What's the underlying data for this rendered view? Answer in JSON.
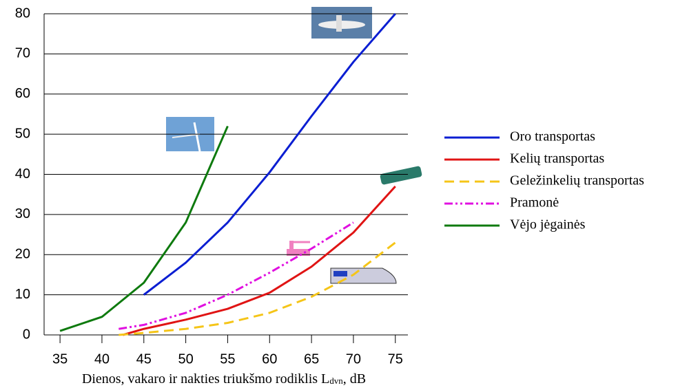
{
  "chart_data": {
    "type": "line",
    "xlabel": "Dienos, vakaro ir nakties triukšmo rodiklis L",
    "xlabel_sub": "dvn",
    "xlabel_unit": ", dB",
    "xlim": [
      33.1,
      76.5
    ],
    "xticks": [
      35,
      40,
      45,
      50,
      55,
      60,
      65,
      70,
      75
    ],
    "ylim": [
      0,
      80
    ],
    "yticks": [
      0,
      10,
      20,
      30,
      40,
      50,
      60,
      70,
      80
    ],
    "grid": true,
    "legend": "right",
    "series": [
      {
        "name": "Oro transportas",
        "color": "#0a1ed2",
        "dash": "solid",
        "x": [
          45,
          50,
          55,
          60,
          65,
          70,
          75
        ],
        "values": [
          10,
          18,
          28,
          40.5,
          54.5,
          68,
          80
        ]
      },
      {
        "name": "Kelių transportas",
        "color": "#e01414",
        "dash": "solid",
        "x": [
          42.5,
          45,
          50,
          55,
          60,
          65,
          70,
          75
        ],
        "values": [
          0,
          1.5,
          3.8,
          6.5,
          10.5,
          17,
          25.5,
          37
        ]
      },
      {
        "name": "Geležinkelių transportas",
        "color": "#f5c518",
        "dash": "dash",
        "x": [
          42,
          45,
          50,
          55,
          60,
          65,
          70,
          75
        ],
        "values": [
          0,
          0.5,
          1.5,
          3,
          5.5,
          9.5,
          15,
          23
        ]
      },
      {
        "name": "Pramonė",
        "color": "#e010e0",
        "dash": "dashdot",
        "x": [
          42,
          45,
          50,
          55,
          60,
          65,
          70
        ],
        "values": [
          1.5,
          2.5,
          5.5,
          10,
          15.5,
          21.5,
          28
        ]
      },
      {
        "name": "Vėjo jėgainės",
        "color": "#0e7a0e",
        "dash": "solid",
        "x": [
          35,
          40,
          45,
          50,
          55
        ],
        "values": [
          1,
          4.5,
          13,
          28,
          52
        ]
      }
    ]
  }
}
